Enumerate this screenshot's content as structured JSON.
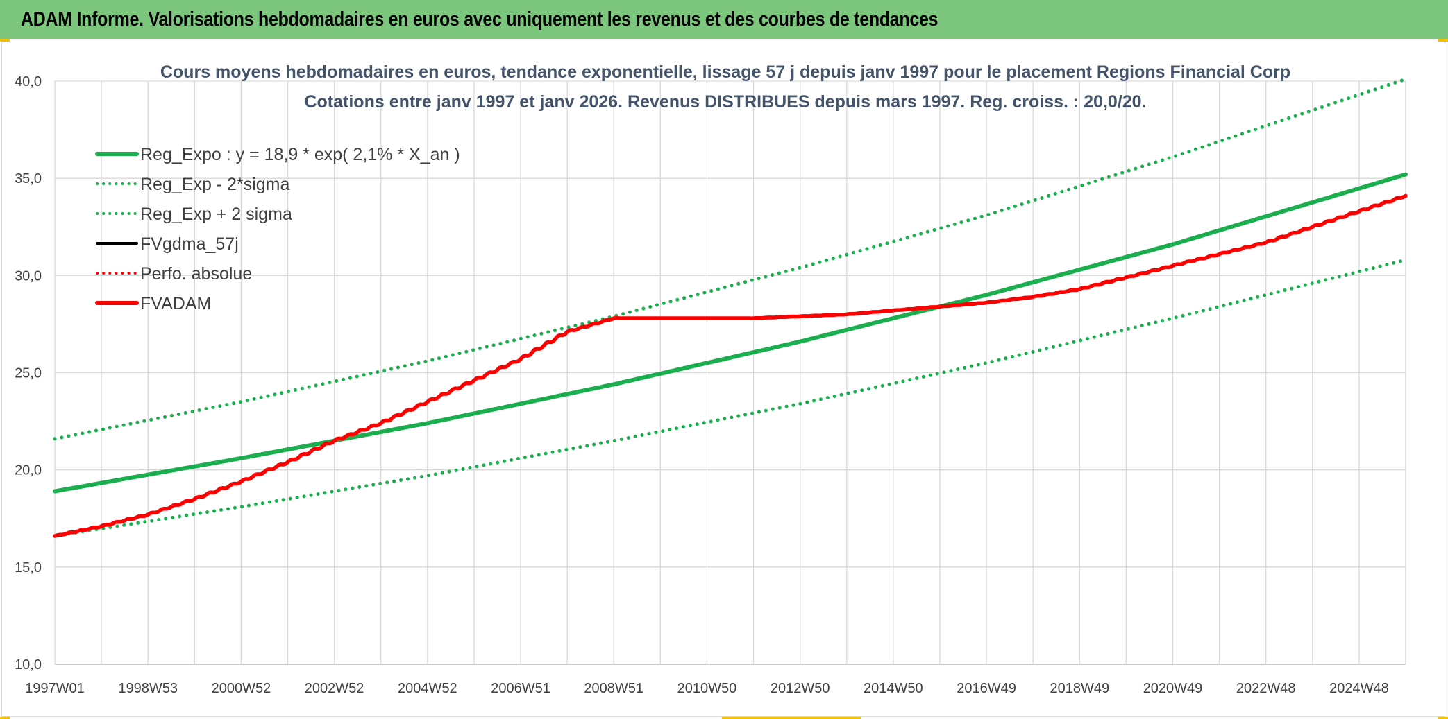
{
  "header": {
    "title": "ADAM Informe. Valorisations hebdomadaires en euros avec uniquement les revenus et des courbes de tendances"
  },
  "chart_data": {
    "type": "line",
    "title": "Cours moyens hebdomadaires en euros, tendance exponentielle, lissage 57 j depuis janv 1997 pour le placement Regions Financial Corp",
    "subtitle": "Cotations entre janv 1997 et janv 2026. Revenus DISTRIBUES depuis mars 1997. Reg. croiss. : 20,0/20.",
    "xlabel": "",
    "ylabel": "",
    "ylim": [
      10,
      40
    ],
    "xlim": [
      1997.0,
      2026.0
    ],
    "y_ticks": [
      "10,0",
      "15,0",
      "20,0",
      "25,0",
      "30,0",
      "35,0",
      "40,0"
    ],
    "y_tick_values": [
      10,
      15,
      20,
      25,
      30,
      35,
      40
    ],
    "x_tick_labels": [
      "1997W01",
      "1998W53",
      "2000W52",
      "2002W52",
      "2004W52",
      "2006W51",
      "2008W51",
      "2010W50",
      "2012W50",
      "2014W50",
      "2016W49",
      "2018W49",
      "2020W49",
      "2022W48",
      "2024W48"
    ],
    "x_tick_years": [
      1997.0,
      1999.0,
      2001.0,
      2003.0,
      2005.0,
      2007.0,
      2009.0,
      2011.0,
      2013.0,
      2015.0,
      2017.0,
      2019.0,
      2021.0,
      2023.0,
      2025.0
    ],
    "grid": true,
    "legend_position": "top-left",
    "colors": {
      "green": "#1aae4f",
      "red": "#ff0000",
      "black": "#000000",
      "grid": "#d9d9d9",
      "title": "#44546a"
    },
    "series": [
      {
        "name": "Reg_Expo : y = 18,9 * exp( 2,1% *  X_an )",
        "style": "solid",
        "color": "#1aae4f",
        "x": [
          1997,
          2001,
          2005,
          2009,
          2013,
          2017,
          2021,
          2026
        ],
        "values": [
          18.9,
          20.6,
          22.4,
          24.4,
          26.6,
          29.0,
          31.6,
          35.2
        ]
      },
      {
        "name": "Reg_Exp - 2*sigma",
        "style": "dotted",
        "color": "#1aae4f",
        "x": [
          1997,
          2001,
          2005,
          2009,
          2013,
          2017,
          2021,
          2026
        ],
        "values": [
          16.6,
          18.1,
          19.7,
          21.5,
          23.4,
          25.5,
          27.8,
          30.8
        ]
      },
      {
        "name": "Reg_Exp + 2 sigma",
        "style": "dotted",
        "color": "#1aae4f",
        "x": [
          1997,
          2001,
          2005,
          2009,
          2013,
          2017,
          2021,
          2026
        ],
        "values": [
          21.6,
          23.5,
          25.6,
          27.9,
          30.4,
          33.1,
          36.1,
          40.1
        ]
      },
      {
        "name": "FVgdma_57j",
        "style": "solid",
        "color": "#000000",
        "x": [],
        "values": []
      },
      {
        "name": "Perfo. absolue",
        "style": "dotted",
        "color": "#ff0000",
        "x": [],
        "values": []
      },
      {
        "name": "FVADAM",
        "style": "solid",
        "color": "#ff0000",
        "x": [
          1997,
          1998,
          1999,
          2000,
          2001,
          2002,
          2003,
          2004,
          2005,
          2006,
          2007,
          2008,
          2009,
          2010,
          2011,
          2012,
          2013,
          2014,
          2015,
          2016,
          2017,
          2018,
          2019,
          2020,
          2021,
          2022,
          2023,
          2024,
          2025,
          2026
        ],
        "values": [
          16.6,
          17.1,
          17.7,
          18.5,
          19.4,
          20.4,
          21.5,
          22.4,
          23.5,
          24.6,
          25.7,
          27.1,
          27.8,
          27.8,
          27.8,
          27.8,
          27.9,
          28.0,
          28.2,
          28.4,
          28.6,
          28.9,
          29.3,
          29.9,
          30.5,
          31.1,
          31.7,
          32.5,
          33.3,
          34.1
        ]
      }
    ]
  }
}
